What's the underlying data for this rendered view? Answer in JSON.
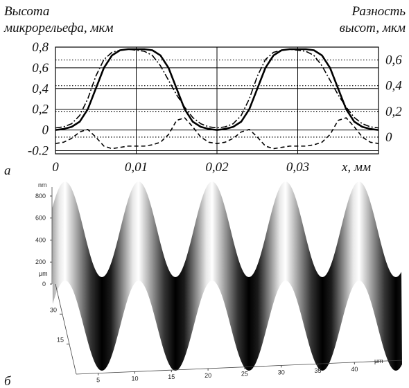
{
  "chart_data": [
    {
      "type": "line",
      "panel_label": "а",
      "y_label": [
        "Высота",
        "микрорельефа, мкм"
      ],
      "y2_label": [
        "Разность",
        "высот, мкм"
      ],
      "x_label": "x, мм",
      "x": [
        0,
        0.001,
        0.002,
        0.003,
        0.004,
        0.005,
        0.006,
        0.007,
        0.008,
        0.009,
        0.01,
        0.011,
        0.012,
        0.013,
        0.014,
        0.015,
        0.016,
        0.017,
        0.018,
        0.019,
        0.02,
        0.021,
        0.022,
        0.023,
        0.024,
        0.025,
        0.026,
        0.027,
        0.028,
        0.029,
        0.03,
        0.031,
        0.032,
        0.033,
        0.034,
        0.035,
        0.036,
        0.037,
        0.038,
        0.039,
        0.04
      ],
      "xlim": [
        0,
        0.04
      ],
      "xticks": [
        0,
        {
          "value": 0.01,
          "label": "0,01"
        },
        {
          "value": 0.02,
          "label": "0,02"
        },
        {
          "value": 0.03,
          "label": "0,03"
        }
      ],
      "ylim": [
        -0.23,
        0.8
      ],
      "yticks": [
        {
          "value": -0.2,
          "label": "-0.2"
        },
        0,
        {
          "value": 0.2,
          "label": "0,2"
        },
        {
          "value": 0.4,
          "label": "0,4"
        },
        {
          "value": 0.6,
          "label": "0,6"
        },
        {
          "value": 0.8,
          "label": "0,8"
        }
      ],
      "y2lim": [
        -0.13,
        0.7
      ],
      "y2ticks": [
        0,
        {
          "value": 0.2,
          "label": "0,2"
        },
        {
          "value": 0.4,
          "label": "0,4"
        },
        {
          "value": 0.6,
          "label": "0,6"
        }
      ],
      "grid": true,
      "series": [
        {
          "color": "#000",
          "style": "solid",
          "values": [
            0,
            0.01,
            0.03,
            0.08,
            0.2,
            0.4,
            0.6,
            0.72,
            0.77,
            0.78,
            0.78,
            0.78,
            0.77,
            0.72,
            0.6,
            0.4,
            0.2,
            0.08,
            0.03,
            0.01,
            0,
            0.01,
            0.03,
            0.08,
            0.2,
            0.4,
            0.6,
            0.72,
            0.77,
            0.78,
            0.78,
            0.78,
            0.77,
            0.72,
            0.6,
            0.4,
            0.2,
            0.08,
            0.03,
            0.01,
            0
          ]
        },
        {
          "color": "#000",
          "style": "dashdot",
          "values": [
            0.02,
            0.03,
            0.06,
            0.14,
            0.3,
            0.52,
            0.68,
            0.75,
            0.77,
            0.78,
            0.77,
            0.76,
            0.72,
            0.62,
            0.48,
            0.34,
            0.22,
            0.12,
            0.06,
            0.03,
            0.02,
            0.03,
            0.06,
            0.14,
            0.3,
            0.52,
            0.68,
            0.75,
            0.77,
            0.78,
            0.77,
            0.76,
            0.72,
            0.62,
            0.48,
            0.34,
            0.22,
            0.12,
            0.06,
            0.03,
            0.02
          ]
        },
        {
          "color": "#000",
          "style": "dashed",
          "axis": "y2",
          "values": [
            -0.05,
            -0.04,
            -0.01,
            0.04,
            0.06,
            0,
            -0.07,
            -0.09,
            -0.08,
            -0.07,
            -0.07,
            -0.07,
            -0.06,
            -0.04,
            0.02,
            0.13,
            0.15,
            0.08,
            0,
            -0.04,
            -0.05,
            -0.04,
            -0.01,
            0.04,
            0.06,
            0,
            -0.07,
            -0.09,
            -0.08,
            -0.07,
            -0.07,
            -0.07,
            -0.06,
            -0.04,
            0.02,
            0.13,
            0.15,
            0.08,
            0,
            -0.04,
            -0.05
          ]
        }
      ]
    },
    {
      "type": "surface",
      "panel_label": "б",
      "z_label": "nm",
      "zlim": [
        0,
        850
      ],
      "zticks": [
        0,
        200,
        400,
        600,
        800
      ],
      "y_label": "μm",
      "ylim": [
        0,
        45
      ],
      "yticks": [
        15,
        30
      ],
      "x_label": "μm",
      "xlim": [
        2,
        46.5
      ],
      "xticks": [
        5,
        10,
        15,
        20,
        25,
        30,
        35,
        40
      ]
    }
  ]
}
